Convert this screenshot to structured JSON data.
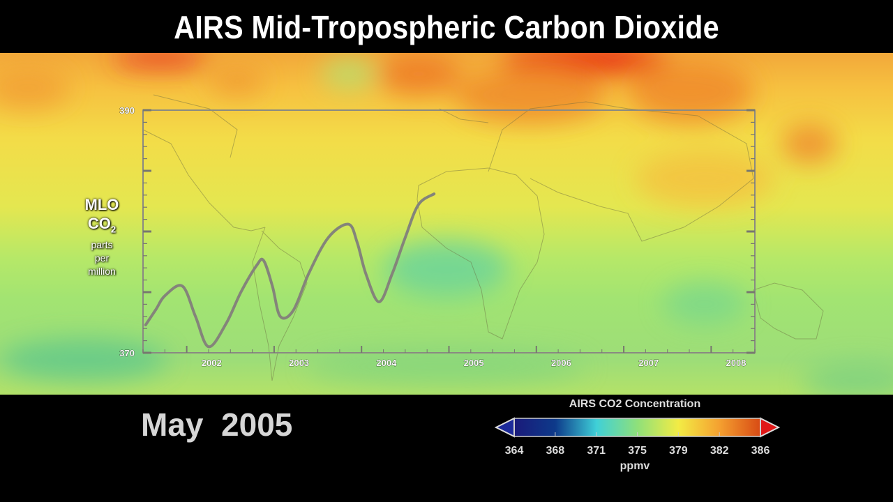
{
  "title": "AIRS Mid-Tropospheric Carbon Dioxide",
  "date_label": "May  2005",
  "ylabel": {
    "line1": "MLO",
    "line2_main": "CO",
    "line2_sub": "2",
    "line3": "parts",
    "line4": "per",
    "line5": "million"
  },
  "colorbar": {
    "title": "AIRS CO2 Concentration",
    "unit": "ppmv",
    "ticks": [
      "364",
      "368",
      "371",
      "375",
      "379",
      "382",
      "386"
    ],
    "colors": [
      "#1a1a7a",
      "#0d3a8a",
      "#3fd0d8",
      "#8fe07a",
      "#f3ec45",
      "#f4a030",
      "#d84a14"
    ]
  },
  "chart_data": {
    "type": "line",
    "title": "",
    "xlabel": "",
    "ylabel": "MLO CO2 parts per million",
    "xlim": [
      2001.5,
      2008.5
    ],
    "ylim": [
      370,
      390
    ],
    "y_tick_labels": [
      "390",
      "370"
    ],
    "x_tick_labels": [
      "2002",
      "2003",
      "2004",
      "2005",
      "2006",
      "2007",
      "2008"
    ],
    "series": [
      {
        "x": [
          2001.53,
          2001.65,
          2001.75,
          2001.95,
          2002.1,
          2002.25,
          2002.45,
          2002.62,
          2002.8,
          2002.88,
          2002.98,
          2003.07,
          2003.22,
          2003.4,
          2003.62,
          2003.85,
          2003.95,
          2004.05,
          2004.2,
          2004.35,
          2004.5,
          2004.65,
          2004.83
        ],
        "y": [
          372.3,
          373.6,
          374.7,
          375.5,
          373.0,
          370.5,
          372.4,
          375.0,
          377.2,
          377.6,
          375.5,
          373.0,
          373.5,
          376.6,
          379.5,
          380.6,
          379.1,
          376.5,
          374.2,
          376.5,
          379.5,
          382.2,
          383.1
        ]
      }
    ]
  }
}
